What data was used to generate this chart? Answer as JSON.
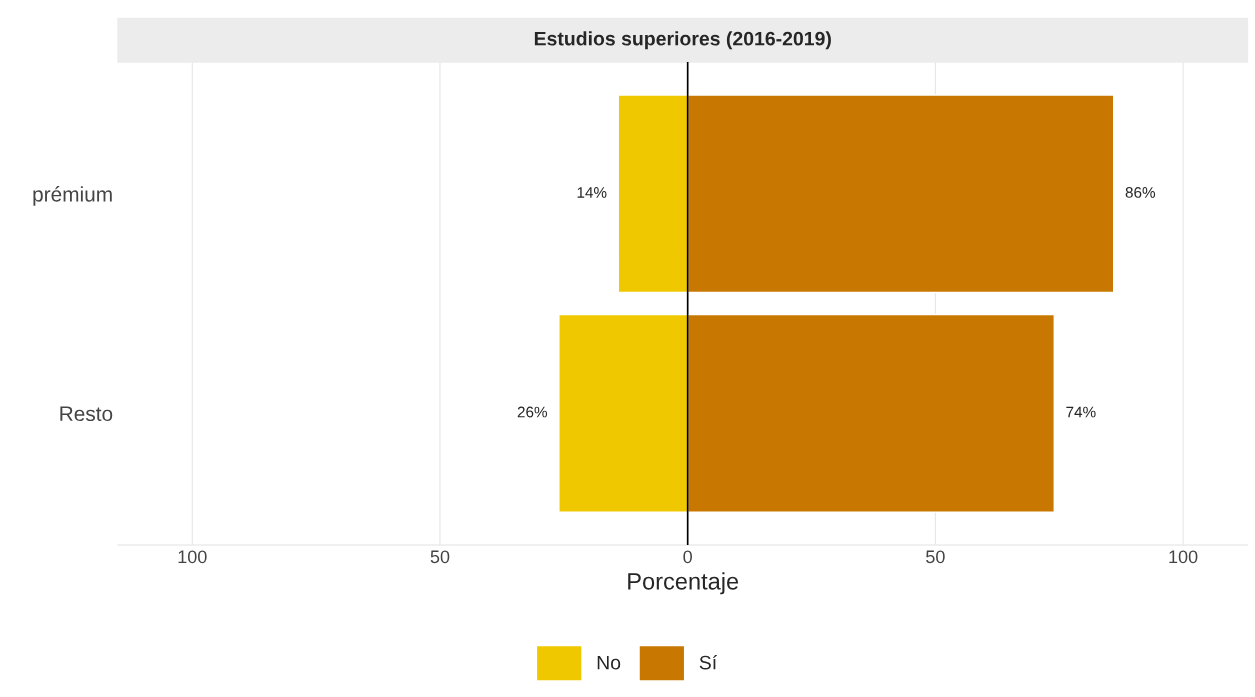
{
  "chart_data": {
    "type": "bar",
    "orientation": "horizontal",
    "title": "Estudios superiores (2016-2019)",
    "xlabel": "Porcentaje",
    "categories": [
      "prémium",
      "Resto"
    ],
    "series": [
      {
        "name": "No",
        "color": "#f0c800",
        "base": [
          -14,
          -26
        ],
        "values": [
          14,
          26
        ],
        "value_labels": [
          "14%",
          "26%"
        ]
      },
      {
        "name": "Sí",
        "color": "#c87800",
        "values": [
          86,
          74
        ],
        "value_labels": [
          "86%",
          "74%"
        ]
      }
    ],
    "xlim": [
      -115,
      113
    ],
    "xticks": [
      {
        "value": -100,
        "label": "100"
      },
      {
        "value": -50,
        "label": "50"
      },
      0,
      50,
      100
    ],
    "ref_lines": [
      {
        "axis": "x",
        "value": 0,
        "color": "#000000"
      }
    ],
    "grid": "x",
    "legend": "bottom"
  }
}
